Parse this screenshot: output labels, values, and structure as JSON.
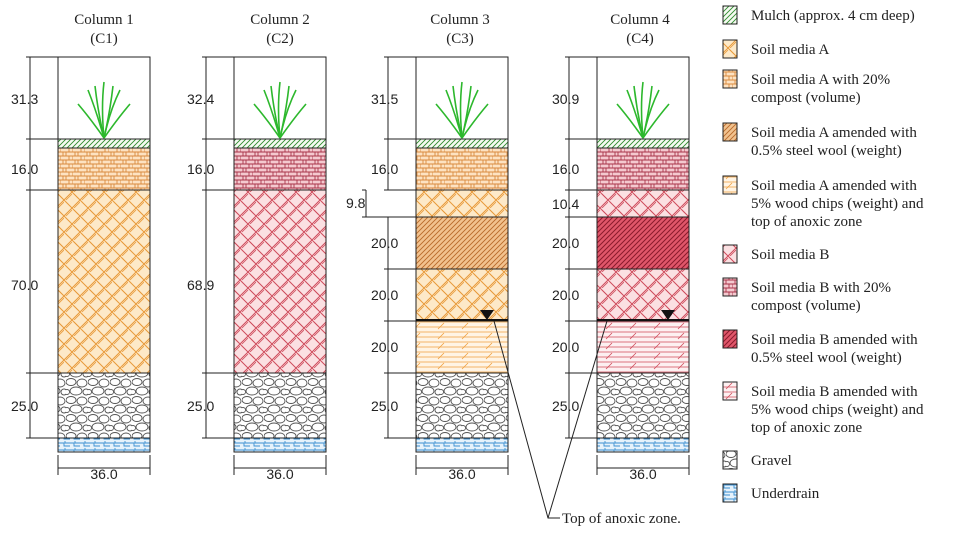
{
  "columns": [
    {
      "name": "Column 1",
      "code": "(C1)",
      "heights": [
        "31.3",
        "16.0",
        "70.0",
        "25.0"
      ],
      "width": "36.0"
    },
    {
      "name": "Column 2",
      "code": "(C2)",
      "heights": [
        "32.4",
        "16.0",
        "68.9",
        "25.0"
      ],
      "width": "36.0"
    },
    {
      "name": "Column 3",
      "code": "(C3)",
      "heights": [
        "31.5",
        "16.0",
        "9.8",
        "20.0",
        "20.0",
        "20.0",
        "25.0"
      ],
      "width": "36.0"
    },
    {
      "name": "Column 4",
      "code": "(C4)",
      "heights": [
        "30.9",
        "16.0",
        "10.4",
        "20.0",
        "20.0",
        "20.0",
        "25.0"
      ],
      "width": "36.0"
    }
  ],
  "legend": [
    {
      "lines": [
        "Mulch (approx. 4 cm deep)"
      ],
      "pattern": "mulch"
    },
    {
      "lines": [
        "Soil media A"
      ],
      "pattern": "soilA"
    },
    {
      "lines": [
        "Soil media A with 20%",
        "compost (volume)"
      ],
      "pattern": "soilAcomp"
    },
    {
      "lines": [
        "Soil media A amended with",
        "0.5% steel wool (weight)"
      ],
      "pattern": "soilAsteel"
    },
    {
      "lines": [
        "Soil media A amended with",
        "5% wood chips (weight) and",
        "top of anoxic zone"
      ],
      "pattern": "soilAwood"
    },
    {
      "lines": [
        "Soil media B"
      ],
      "pattern": "soilB"
    },
    {
      "lines": [
        "Soil media B with 20%",
        "compost (volume)"
      ],
      "pattern": "soilBcomp"
    },
    {
      "lines": [
        "Soil media B amended with",
        "0.5% steel wool (weight)"
      ],
      "pattern": "soilBsteel"
    },
    {
      "lines": [
        "Soil media B amended with",
        "5% wood chips (weight) and",
        "top of anoxic zone"
      ],
      "pattern": "soilBwood"
    },
    {
      "lines": [
        "Gravel"
      ],
      "pattern": "gravel"
    },
    {
      "lines": [
        "Underdrain"
      ],
      "pattern": "drain"
    }
  ],
  "annotation": "Top of anoxic zone.",
  "colors": {
    "mulch": "#2e8b2e",
    "soilA": "#f0a040",
    "soilB": "#d04a5a",
    "plant": "#2db82d",
    "gravel": "#555555",
    "drain": "#3a8fd0"
  }
}
